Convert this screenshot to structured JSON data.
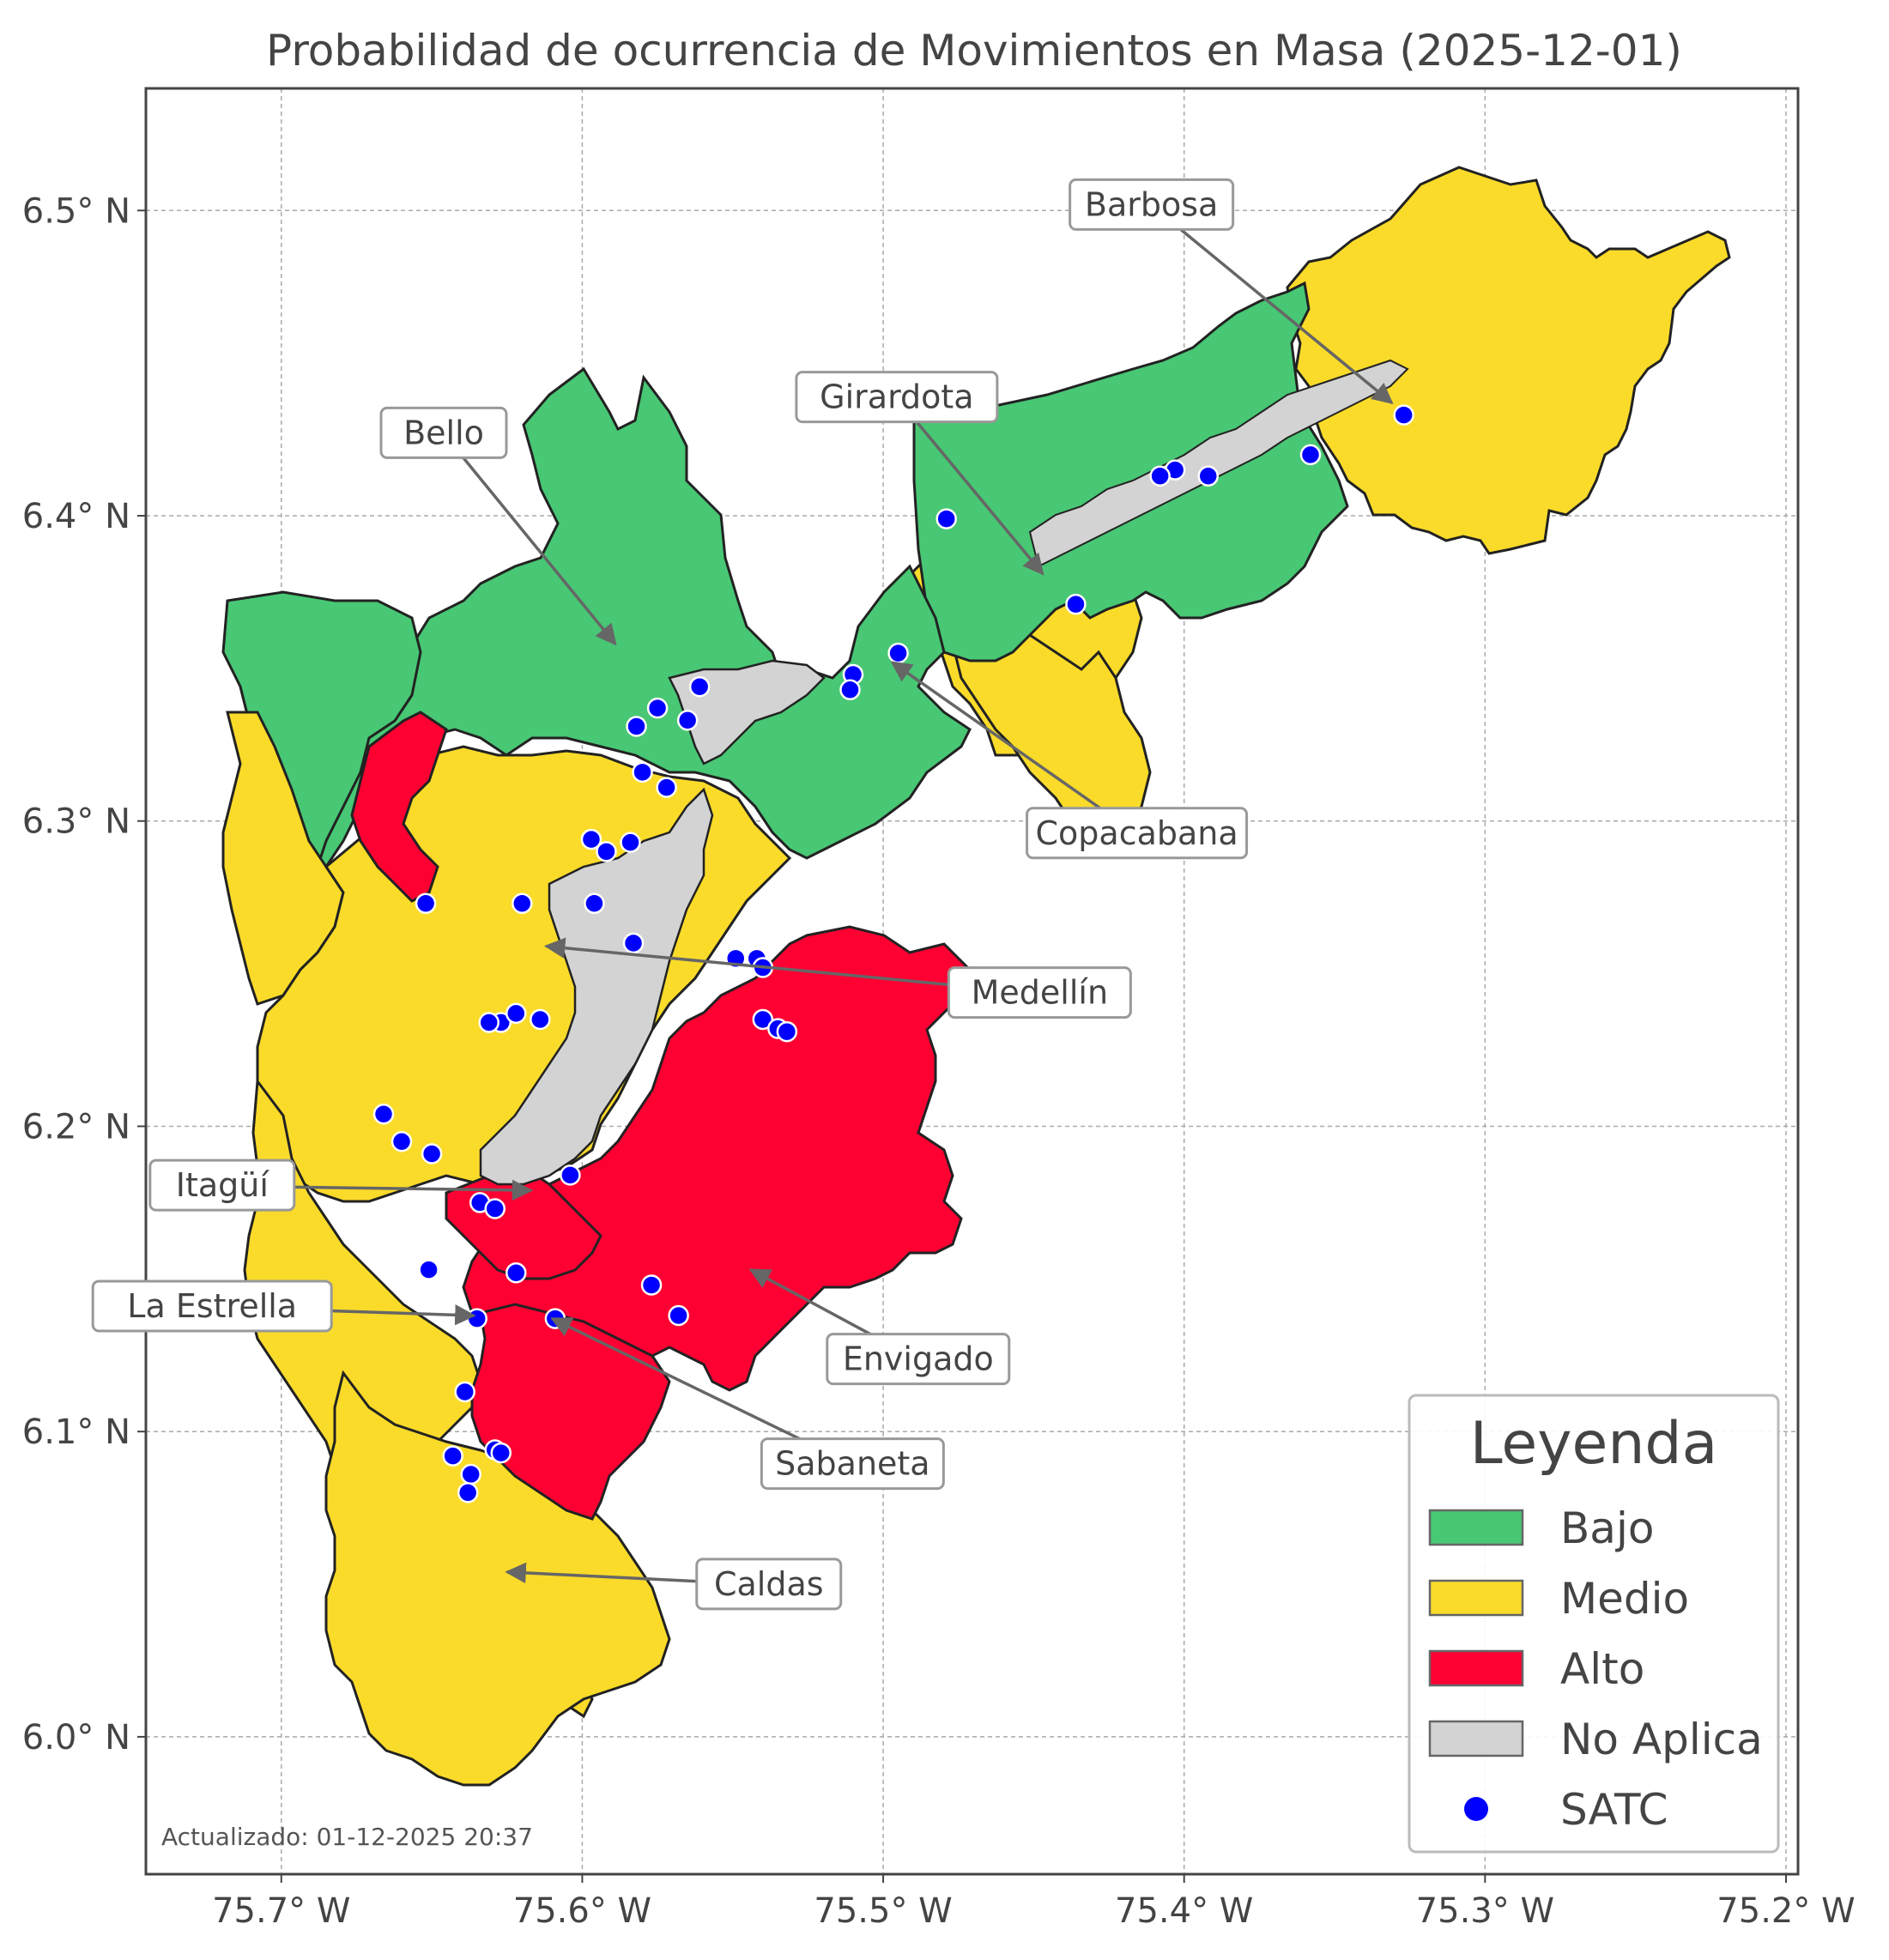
{
  "title": "Probabilidad de ocurrencia de Movimientos en Masa (2025-12-01)",
  "axes": {
    "x_ticks": [
      "75.7° W",
      "75.6° W",
      "75.5° W",
      "75.4° W",
      "75.3° W",
      "75.2° W"
    ],
    "y_ticks": [
      "6.5° N",
      "6.4° N",
      "6.3° N",
      "6.2° N",
      "6.1° N",
      "6.0° N"
    ],
    "x_values": [
      -75.7,
      -75.6,
      -75.5,
      -75.4,
      -75.3,
      -75.2
    ],
    "y_values": [
      6.5,
      6.4,
      6.3,
      6.2,
      6.1,
      6.0
    ],
    "xlim": [
      -75.745,
      -75.196
    ],
    "ylim": [
      5.955,
      6.54
    ],
    "grid": true
  },
  "municipalities": [
    {
      "name": "Barbosa",
      "lon": -75.331,
      "lat": 6.437
    },
    {
      "name": "Girardota",
      "lon": -75.447,
      "lat": 6.381
    },
    {
      "name": "Bello",
      "lon": -75.589,
      "lat": 6.358
    },
    {
      "name": "Copacabana",
      "lon": -75.497,
      "lat": 6.352
    },
    {
      "name": "Medellín",
      "lon": -75.612,
      "lat": 6.259
    },
    {
      "name": "Itagüí",
      "lon": -75.617,
      "lat": 6.179
    },
    {
      "name": "La Estrella",
      "lon": -75.636,
      "lat": 6.138
    },
    {
      "name": "Envigado",
      "lon": -75.544,
      "lat": 6.153
    },
    {
      "name": "Sabaneta",
      "lon": -75.61,
      "lat": 6.137
    },
    {
      "name": "Caldas",
      "lon": -75.625,
      "lat": 6.054
    }
  ],
  "legend": {
    "title": "Leyenda",
    "items": [
      {
        "label": "Bajo",
        "color": "#48c774",
        "kind": "patch"
      },
      {
        "label": "Medio",
        "color": "#fadb2a",
        "kind": "patch"
      },
      {
        "label": "Alto",
        "color": "#ff0033",
        "kind": "patch"
      },
      {
        "label": "No Aplica",
        "color": "#d3d3d3",
        "kind": "patch"
      },
      {
        "label": "SATC",
        "color": "#0000ff",
        "kind": "point"
      }
    ],
    "position": "lower-right"
  },
  "satc_stations": [
    [
      -75.327,
      6.433
    ],
    [
      -75.358,
      6.42
    ],
    [
      -75.392,
      6.413
    ],
    [
      -75.403,
      6.415
    ],
    [
      -75.408,
      6.413
    ],
    [
      -75.479,
      6.399
    ],
    [
      -75.436,
      6.371
    ],
    [
      -75.495,
      6.355
    ],
    [
      -75.51,
      6.348
    ],
    [
      -75.511,
      6.343
    ],
    [
      -75.561,
      6.344
    ],
    [
      -75.565,
      6.333
    ],
    [
      -75.575,
      6.337
    ],
    [
      -75.582,
      6.331
    ],
    [
      -75.58,
      6.316
    ],
    [
      -75.572,
      6.311
    ],
    [
      -75.597,
      6.294
    ],
    [
      -75.592,
      6.29
    ],
    [
      -75.584,
      6.293
    ],
    [
      -75.652,
      6.273
    ],
    [
      -75.62,
      6.273
    ],
    [
      -75.596,
      6.273
    ],
    [
      -75.583,
      6.26
    ],
    [
      -75.549,
      6.255
    ],
    [
      -75.542,
      6.255
    ],
    [
      -75.54,
      6.252
    ],
    [
      -75.54,
      6.235
    ],
    [
      -75.535,
      6.232
    ],
    [
      -75.532,
      6.231
    ],
    [
      -75.627,
      6.234
    ],
    [
      -75.622,
      6.237
    ],
    [
      -75.614,
      6.235
    ],
    [
      -75.631,
      6.234
    ],
    [
      -75.666,
      6.204
    ],
    [
      -75.66,
      6.195
    ],
    [
      -75.65,
      6.191
    ],
    [
      -75.604,
      6.184
    ],
    [
      -75.634,
      6.175
    ],
    [
      -75.629,
      6.173
    ],
    [
      -75.651,
      6.153
    ],
    [
      -75.622,
      6.152
    ],
    [
      -75.577,
      6.148
    ],
    [
      -75.568,
      6.138
    ],
    [
      -75.609,
      6.137
    ],
    [
      -75.635,
      6.137
    ],
    [
      -75.639,
      6.113
    ],
    [
      -75.629,
      6.094
    ],
    [
      -75.627,
      6.093
    ],
    [
      -75.643,
      6.092
    ],
    [
      -75.637,
      6.086
    ],
    [
      -75.638,
      6.08
    ]
  ],
  "footnote": "Actualizado: 01-12-2025 20:37"
}
